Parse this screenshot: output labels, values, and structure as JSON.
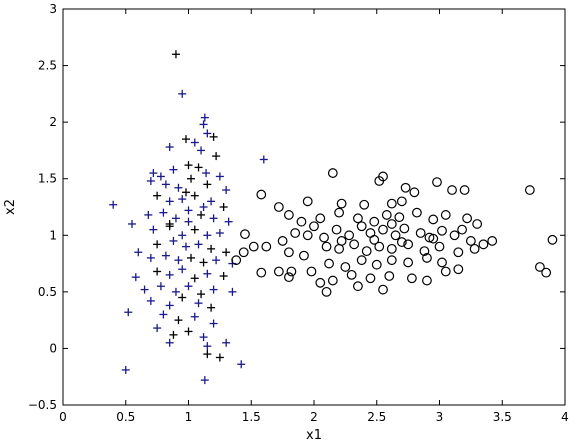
{
  "chart_data": {
    "type": "scatter",
    "xlabel": "x1",
    "ylabel": "x2",
    "xlim": [
      0,
      4
    ],
    "ylim": [
      -0.5,
      3
    ],
    "xticks": [
      "0",
      "0.5",
      "1",
      "1.5",
      "2",
      "2.5",
      "3",
      "3.5",
      "4"
    ],
    "yticks": [
      "−0.5",
      "0",
      "0.5",
      "1",
      "1.5",
      "2",
      "2.5",
      "3"
    ],
    "xtick_values": [
      0,
      0.5,
      1,
      1.5,
      2,
      2.5,
      3,
      3.5,
      4
    ],
    "ytick_values": [
      -0.5,
      0,
      0.5,
      1,
      1.5,
      2,
      2.5,
      3
    ],
    "grid": false,
    "series": [
      {
        "marker": "plus",
        "colors": [
          "#1a1a8c",
          "#000000"
        ],
        "points": [
          [
            0.9,
            2.6
          ],
          [
            0.95,
            2.25
          ],
          [
            1.13,
            2.04
          ],
          [
            1.12,
            1.98
          ],
          [
            1.15,
            1.9
          ],
          [
            0.98,
            1.85
          ],
          [
            1.05,
            1.82
          ],
          [
            1.2,
            1.87
          ],
          [
            0.85,
            1.78
          ],
          [
            1.1,
            1.75
          ],
          [
            1.22,
            1.7
          ],
          [
            0.72,
            1.55
          ],
          [
            0.78,
            1.52
          ],
          [
            0.88,
            1.58
          ],
          [
            1.0,
            1.62
          ],
          [
            1.08,
            1.6
          ],
          [
            1.6,
            1.67
          ],
          [
            0.7,
            1.48
          ],
          [
            0.82,
            1.45
          ],
          [
            0.92,
            1.42
          ],
          [
            1.02,
            1.5
          ],
          [
            1.15,
            1.45
          ],
          [
            1.25,
            1.52
          ],
          [
            1.3,
            1.4
          ],
          [
            0.4,
            1.27
          ],
          [
            0.75,
            1.35
          ],
          [
            0.85,
            1.3
          ],
          [
            0.95,
            1.32
          ],
          [
            1.05,
            1.35
          ],
          [
            1.18,
            1.3
          ],
          [
            1.28,
            1.25
          ],
          [
            0.68,
            1.18
          ],
          [
            0.8,
            1.2
          ],
          [
            0.9,
            1.15
          ],
          [
            1.0,
            1.22
          ],
          [
            1.1,
            1.18
          ],
          [
            1.2,
            1.15
          ],
          [
            1.32,
            1.12
          ],
          [
            0.55,
            1.1
          ],
          [
            0.72,
            1.05
          ],
          [
            0.85,
            1.08
          ],
          [
            0.95,
            1.0
          ],
          [
            1.05,
            1.05
          ],
          [
            1.15,
            1.0
          ],
          [
            1.25,
            1.02
          ],
          [
            0.75,
            0.92
          ],
          [
            0.88,
            0.95
          ],
          [
            0.98,
            0.9
          ],
          [
            1.08,
            0.92
          ],
          [
            1.18,
            0.88
          ],
          [
            1.3,
            0.85
          ],
          [
            0.6,
            0.85
          ],
          [
            0.7,
            0.8
          ],
          [
            0.82,
            0.82
          ],
          [
            0.92,
            0.78
          ],
          [
            1.02,
            0.8
          ],
          [
            1.12,
            0.76
          ],
          [
            1.22,
            0.78
          ],
          [
            1.35,
            0.75
          ],
          [
            0.58,
            0.63
          ],
          [
            0.75,
            0.68
          ],
          [
            0.85,
            0.65
          ],
          [
            0.95,
            0.7
          ],
          [
            1.05,
            0.62
          ],
          [
            1.15,
            0.66
          ],
          [
            1.28,
            0.64
          ],
          [
            0.65,
            0.52
          ],
          [
            0.78,
            0.55
          ],
          [
            0.9,
            0.5
          ],
          [
            1.0,
            0.55
          ],
          [
            1.1,
            0.48
          ],
          [
            1.2,
            0.52
          ],
          [
            1.35,
            0.5
          ],
          [
            0.7,
            0.42
          ],
          [
            0.85,
            0.38
          ],
          [
            0.95,
            0.45
          ],
          [
            1.08,
            0.4
          ],
          [
            1.18,
            0.36
          ],
          [
            0.52,
            0.32
          ],
          [
            0.8,
            0.3
          ],
          [
            0.92,
            0.25
          ],
          [
            1.05,
            0.28
          ],
          [
            1.2,
            0.22
          ],
          [
            0.75,
            0.18
          ],
          [
            0.88,
            0.12
          ],
          [
            1.0,
            0.15
          ],
          [
            1.12,
            0.1
          ],
          [
            0.85,
            0.05
          ],
          [
            1.15,
            0.02
          ],
          [
            1.3,
            0.05
          ],
          [
            1.15,
            -0.05
          ],
          [
            1.25,
            -0.08
          ],
          [
            1.42,
            -0.14
          ],
          [
            0.5,
            -0.19
          ],
          [
            1.13,
            -0.28
          ],
          [
            0.85,
            1.1
          ],
          [
            1.0,
            1.12
          ],
          [
            1.12,
            1.25
          ],
          [
            0.98,
            1.38
          ],
          [
            1.14,
            1.55
          ]
        ]
      },
      {
        "marker": "circle",
        "colors": [
          "#000000"
        ],
        "points": [
          [
            1.58,
            1.36
          ],
          [
            1.72,
            1.25
          ],
          [
            1.95,
            1.3
          ],
          [
            2.15,
            1.55
          ],
          [
            2.52,
            1.48
          ],
          [
            2.55,
            1.52
          ],
          [
            2.73,
            1.42
          ],
          [
            2.8,
            1.38
          ],
          [
            2.98,
            1.47
          ],
          [
            3.2,
            1.4
          ],
          [
            3.72,
            1.4
          ],
          [
            3.1,
            1.4
          ],
          [
            2.7,
            1.3
          ],
          [
            2.62,
            1.28
          ],
          [
            2.4,
            1.27
          ],
          [
            2.22,
            1.28
          ],
          [
            1.8,
            1.18
          ],
          [
            1.9,
            1.12
          ],
          [
            2.05,
            1.15
          ],
          [
            2.2,
            1.2
          ],
          [
            2.35,
            1.15
          ],
          [
            2.48,
            1.12
          ],
          [
            2.58,
            1.18
          ],
          [
            2.68,
            1.16
          ],
          [
            2.82,
            1.2
          ],
          [
            2.95,
            1.14
          ],
          [
            3.05,
            1.18
          ],
          [
            3.22,
            1.15
          ],
          [
            3.3,
            1.1
          ],
          [
            1.45,
            1.01
          ],
          [
            1.52,
            0.9
          ],
          [
            1.62,
            0.9
          ],
          [
            1.75,
            0.95
          ],
          [
            1.85,
            1.02
          ],
          [
            1.95,
            1.0
          ],
          [
            2.08,
            0.98
          ],
          [
            2.18,
            1.05
          ],
          [
            2.28,
            1.0
          ],
          [
            2.38,
            1.08
          ],
          [
            2.45,
            1.02
          ],
          [
            2.55,
            1.05
          ],
          [
            2.65,
            1.0
          ],
          [
            2.72,
            1.06
          ],
          [
            2.85,
            1.02
          ],
          [
            2.92,
            0.98
          ],
          [
            3.02,
            1.04
          ],
          [
            3.12,
            1.0
          ],
          [
            3.25,
            0.95
          ],
          [
            3.35,
            0.92
          ],
          [
            3.42,
            0.95
          ],
          [
            3.9,
            0.96
          ],
          [
            1.44,
            0.85
          ],
          [
            1.8,
            0.85
          ],
          [
            1.92,
            0.82
          ],
          [
            2.1,
            0.9
          ],
          [
            2.2,
            0.88
          ],
          [
            2.32,
            0.92
          ],
          [
            2.42,
            0.86
          ],
          [
            2.52,
            0.9
          ],
          [
            2.62,
            0.88
          ],
          [
            2.75,
            0.92
          ],
          [
            2.88,
            0.86
          ],
          [
            3.0,
            0.9
          ],
          [
            3.15,
            0.85
          ],
          [
            3.28,
            0.88
          ],
          [
            1.38,
            0.78
          ],
          [
            1.72,
            0.68
          ],
          [
            1.82,
            0.68
          ],
          [
            1.98,
            0.68
          ],
          [
            2.12,
            0.75
          ],
          [
            2.25,
            0.72
          ],
          [
            2.38,
            0.78
          ],
          [
            2.5,
            0.74
          ],
          [
            2.62,
            0.78
          ],
          [
            2.75,
            0.76
          ],
          [
            2.9,
            0.8
          ],
          [
            3.02,
            0.76
          ],
          [
            3.15,
            0.7
          ],
          [
            3.8,
            0.72
          ],
          [
            3.85,
            0.67
          ],
          [
            1.58,
            0.67
          ],
          [
            1.8,
            0.63
          ],
          [
            2.05,
            0.58
          ],
          [
            2.15,
            0.6
          ],
          [
            2.3,
            0.65
          ],
          [
            2.45,
            0.62
          ],
          [
            2.6,
            0.64
          ],
          [
            2.78,
            0.62
          ],
          [
            2.9,
            0.6
          ],
          [
            3.05,
            0.68
          ],
          [
            2.1,
            0.5
          ],
          [
            2.35,
            0.55
          ],
          [
            2.55,
            0.52
          ],
          [
            2.22,
            0.95
          ],
          [
            2.48,
            0.96
          ],
          [
            2.7,
            0.94
          ],
          [
            2.95,
            0.97
          ],
          [
            3.18,
            1.05
          ],
          [
            2.0,
            1.08
          ],
          [
            2.62,
            1.1
          ]
        ]
      }
    ]
  }
}
